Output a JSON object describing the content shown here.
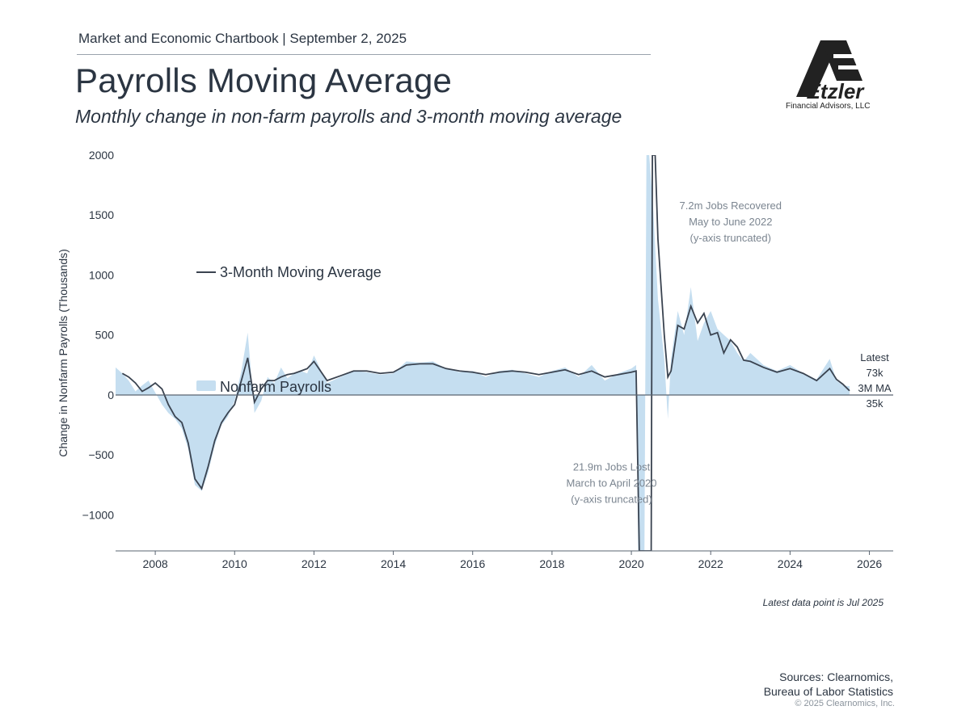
{
  "header": {
    "text": "Market and Economic Chartbook | September 2, 2025",
    "title": "Payrolls Moving Average",
    "subtitle": "Monthly change in non-farm payrolls and 3-month moving average"
  },
  "logo": {
    "name": "Etzler",
    "subname": "Financial Advisors, LLC"
  },
  "colors": {
    "area": "#c5def0",
    "line": "#3a4350",
    "zero": "#5a6470",
    "text": "#2b3542",
    "annotation": "#7b8590"
  },
  "footer": {
    "note": "Latest data point is Jul 2025",
    "sources_line1": "Sources: Clearnomics,",
    "sources_line2": "Bureau of Labor Statistics",
    "copyright": "© 2025 Clearnomics, Inc."
  },
  "chart_data": {
    "type": "area",
    "ylabel": "Change in Nonfarm Payrolls (Thousands)",
    "xlim": [
      2007,
      2026.6
    ],
    "ylim": [
      -1300,
      2000
    ],
    "y_ticks": [
      2000,
      1500,
      1000,
      500,
      0,
      -500,
      -1000
    ],
    "y_tick_labels": [
      "2000",
      "1500",
      "1000",
      "500",
      "0",
      "−500",
      "−1000"
    ],
    "x_ticks": [
      2008,
      2010,
      2012,
      2014,
      2016,
      2018,
      2020,
      2022,
      2024,
      2026
    ],
    "x_tick_labels": [
      "2008",
      "2010",
      "2012",
      "2014",
      "2016",
      "2018",
      "2020",
      "2022",
      "2024",
      "2026"
    ],
    "legend_position": "top-left",
    "series": [
      {
        "name": "Nonfarm Payrolls",
        "kind": "area",
        "points": [
          [
            2007.0,
            230
          ],
          [
            2007.17,
            180
          ],
          [
            2007.33,
            120
          ],
          [
            2007.5,
            30
          ],
          [
            2007.67,
            80
          ],
          [
            2007.83,
            120
          ],
          [
            2008.0,
            20
          ],
          [
            2008.17,
            -80
          ],
          [
            2008.33,
            -150
          ],
          [
            2008.5,
            -200
          ],
          [
            2008.67,
            -280
          ],
          [
            2008.83,
            -450
          ],
          [
            2009.0,
            -750
          ],
          [
            2009.17,
            -800
          ],
          [
            2009.33,
            -650
          ],
          [
            2009.5,
            -420
          ],
          [
            2009.67,
            -250
          ],
          [
            2009.83,
            -180
          ],
          [
            2010.0,
            -50
          ],
          [
            2010.17,
            200
          ],
          [
            2010.33,
            520
          ],
          [
            2010.5,
            -150
          ],
          [
            2010.67,
            -50
          ],
          [
            2010.83,
            150
          ],
          [
            2011.0,
            100
          ],
          [
            2011.17,
            230
          ],
          [
            2011.33,
            140
          ],
          [
            2011.5,
            180
          ],
          [
            2011.67,
            200
          ],
          [
            2011.83,
            180
          ],
          [
            2012.0,
            330
          ],
          [
            2012.33,
            100
          ],
          [
            2012.67,
            150
          ],
          [
            2013.0,
            200
          ],
          [
            2013.33,
            190
          ],
          [
            2013.67,
            170
          ],
          [
            2014.0,
            180
          ],
          [
            2014.33,
            280
          ],
          [
            2014.67,
            270
          ],
          [
            2015.0,
            280
          ],
          [
            2015.33,
            220
          ],
          [
            2015.67,
            190
          ],
          [
            2016.0,
            200
          ],
          [
            2016.33,
            150
          ],
          [
            2016.67,
            200
          ],
          [
            2017.0,
            210
          ],
          [
            2017.33,
            180
          ],
          [
            2017.67,
            150
          ],
          [
            2018.0,
            200
          ],
          [
            2018.33,
            230
          ],
          [
            2018.67,
            150
          ],
          [
            2019.0,
            250
          ],
          [
            2019.33,
            120
          ],
          [
            2019.67,
            180
          ],
          [
            2020.0,
            220
          ],
          [
            2020.12,
            250
          ],
          [
            2020.17,
            -1300
          ],
          [
            2020.25,
            -1300
          ],
          [
            2020.33,
            -1300
          ],
          [
            2020.38,
            2000
          ],
          [
            2020.45,
            2000
          ],
          [
            2020.55,
            1550
          ],
          [
            2020.67,
            800
          ],
          [
            2020.83,
            300
          ],
          [
            2020.92,
            -200
          ],
          [
            2021.0,
            300
          ],
          [
            2021.17,
            700
          ],
          [
            2021.33,
            500
          ],
          [
            2021.5,
            900
          ],
          [
            2021.67,
            450
          ],
          [
            2021.83,
            600
          ],
          [
            2022.0,
            700
          ],
          [
            2022.17,
            550
          ],
          [
            2022.5,
            450
          ],
          [
            2022.67,
            350
          ],
          [
            2022.83,
            280
          ],
          [
            2023.0,
            350
          ],
          [
            2023.33,
            250
          ],
          [
            2023.67,
            200
          ],
          [
            2024.0,
            250
          ],
          [
            2024.33,
            180
          ],
          [
            2024.67,
            130
          ],
          [
            2025.0,
            300
          ],
          [
            2025.17,
            120
          ],
          [
            2025.33,
            80
          ],
          [
            2025.5,
            73
          ]
        ]
      },
      {
        "name": "3-Month Moving Average",
        "kind": "line",
        "points": [
          [
            2007.17,
            180
          ],
          [
            2007.33,
            150
          ],
          [
            2007.5,
            100
          ],
          [
            2007.67,
            30
          ],
          [
            2007.83,
            60
          ],
          [
            2008.0,
            100
          ],
          [
            2008.17,
            50
          ],
          [
            2008.33,
            -80
          ],
          [
            2008.5,
            -180
          ],
          [
            2008.67,
            -230
          ],
          [
            2008.83,
            -400
          ],
          [
            2009.0,
            -700
          ],
          [
            2009.17,
            -780
          ],
          [
            2009.33,
            -600
          ],
          [
            2009.5,
            -380
          ],
          [
            2009.67,
            -230
          ],
          [
            2009.83,
            -150
          ],
          [
            2010.0,
            -80
          ],
          [
            2010.17,
            120
          ],
          [
            2010.33,
            310
          ],
          [
            2010.5,
            -60
          ],
          [
            2010.67,
            50
          ],
          [
            2010.83,
            120
          ],
          [
            2011.0,
            120
          ],
          [
            2011.17,
            150
          ],
          [
            2011.33,
            170
          ],
          [
            2011.5,
            180
          ],
          [
            2011.67,
            200
          ],
          [
            2011.83,
            220
          ],
          [
            2012.0,
            280
          ],
          [
            2012.33,
            120
          ],
          [
            2012.67,
            160
          ],
          [
            2013.0,
            200
          ],
          [
            2013.33,
            200
          ],
          [
            2013.67,
            180
          ],
          [
            2014.0,
            190
          ],
          [
            2014.33,
            250
          ],
          [
            2014.67,
            260
          ],
          [
            2015.0,
            260
          ],
          [
            2015.33,
            220
          ],
          [
            2015.67,
            200
          ],
          [
            2016.0,
            190
          ],
          [
            2016.33,
            170
          ],
          [
            2016.67,
            190
          ],
          [
            2017.0,
            200
          ],
          [
            2017.33,
            190
          ],
          [
            2017.67,
            170
          ],
          [
            2018.0,
            190
          ],
          [
            2018.33,
            210
          ],
          [
            2018.67,
            170
          ],
          [
            2019.0,
            200
          ],
          [
            2019.33,
            150
          ],
          [
            2019.67,
            170
          ],
          [
            2020.0,
            190
          ],
          [
            2020.12,
            200
          ],
          [
            2020.2,
            -1300
          ],
          [
            2020.5,
            -1300
          ],
          [
            2020.53,
            2000
          ],
          [
            2020.6,
            2000
          ],
          [
            2020.67,
            1300
          ],
          [
            2020.83,
            500
          ],
          [
            2020.92,
            150
          ],
          [
            2021.0,
            200
          ],
          [
            2021.17,
            580
          ],
          [
            2021.33,
            550
          ],
          [
            2021.5,
            740
          ],
          [
            2021.67,
            600
          ],
          [
            2021.83,
            680
          ],
          [
            2022.0,
            500
          ],
          [
            2022.17,
            520
          ],
          [
            2022.33,
            350
          ],
          [
            2022.5,
            460
          ],
          [
            2022.67,
            400
          ],
          [
            2022.83,
            290
          ],
          [
            2023.0,
            280
          ],
          [
            2023.33,
            230
          ],
          [
            2023.67,
            190
          ],
          [
            2024.0,
            220
          ],
          [
            2024.33,
            180
          ],
          [
            2024.67,
            120
          ],
          [
            2025.0,
            220
          ],
          [
            2025.17,
            130
          ],
          [
            2025.33,
            90
          ],
          [
            2025.5,
            35
          ]
        ]
      }
    ],
    "annotations": [
      {
        "lines": [
          "7.2m Jobs Recovered",
          "May to June 2022",
          "(y-axis truncated)"
        ],
        "x": 2022.5,
        "y": 1550
      },
      {
        "lines": [
          "21.9m Jobs Lost",
          "March to April 2020",
          "(y-axis truncated)"
        ],
        "x": 2019.5,
        "y": -630
      }
    ],
    "end_labels": {
      "latest_label": "Latest",
      "latest_value": "73k",
      "ma_label": "3M MA",
      "ma_value": "35k"
    }
  }
}
